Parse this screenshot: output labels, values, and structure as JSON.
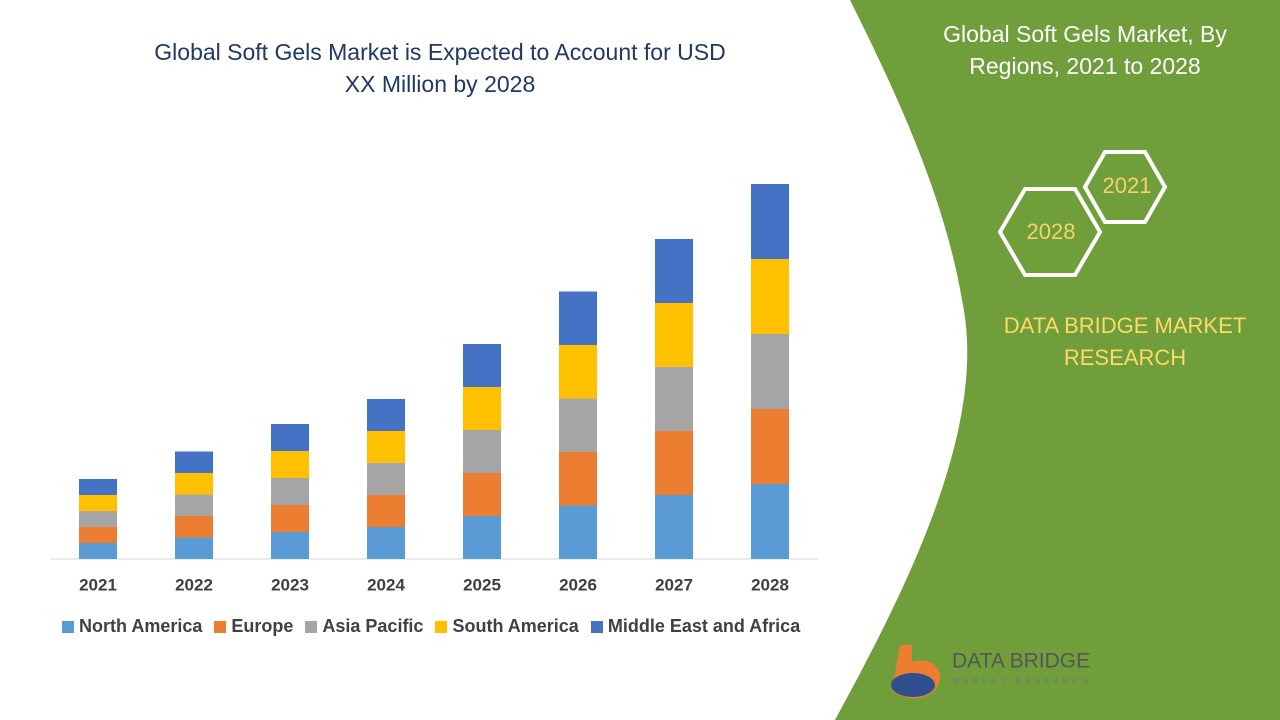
{
  "chart_data": {
    "type": "stacked_bar",
    "title": "Global Soft Gels Market is Expected to Account for USD XX Million by 2028",
    "categories": [
      "2021",
      "2022",
      "2023",
      "2024",
      "2025",
      "2026",
      "2027",
      "2028"
    ],
    "series": [
      {
        "name": "North America",
        "color": "#5b9bd5",
        "values": [
          1.6,
          2.15,
          2.7,
          3.2,
          4.3,
          5.35,
          6.4,
          7.5
        ]
      },
      {
        "name": "Europe",
        "color": "#ed7d31",
        "values": [
          1.6,
          2.15,
          2.7,
          3.2,
          4.3,
          5.35,
          6.4,
          7.5
        ]
      },
      {
        "name": "Asia Pacific",
        "color": "#a5a5a5",
        "values": [
          1.6,
          2.15,
          2.7,
          3.2,
          4.3,
          5.35,
          6.4,
          7.5
        ]
      },
      {
        "name": "South America",
        "color": "#ffc000",
        "values": [
          1.6,
          2.15,
          2.7,
          3.2,
          4.3,
          5.35,
          6.4,
          7.5
        ]
      },
      {
        "name": "Middle East and Africa",
        "color": "#4472c4",
        "values": [
          1.6,
          2.15,
          2.7,
          3.2,
          4.3,
          5.35,
          6.4,
          7.5
        ]
      }
    ],
    "ylim": [
      0,
      37.5
    ]
  },
  "side_panel": {
    "title": "Global Soft Gels Market, By Regions, 2021 to 2028",
    "badges": [
      "2021",
      "2028"
    ],
    "brand": "DATA BRIDGE MARKET RESEARCH"
  },
  "logo": {
    "name": "DATA BRIDGE",
    "tagline": "MARKET RESEARCH"
  }
}
